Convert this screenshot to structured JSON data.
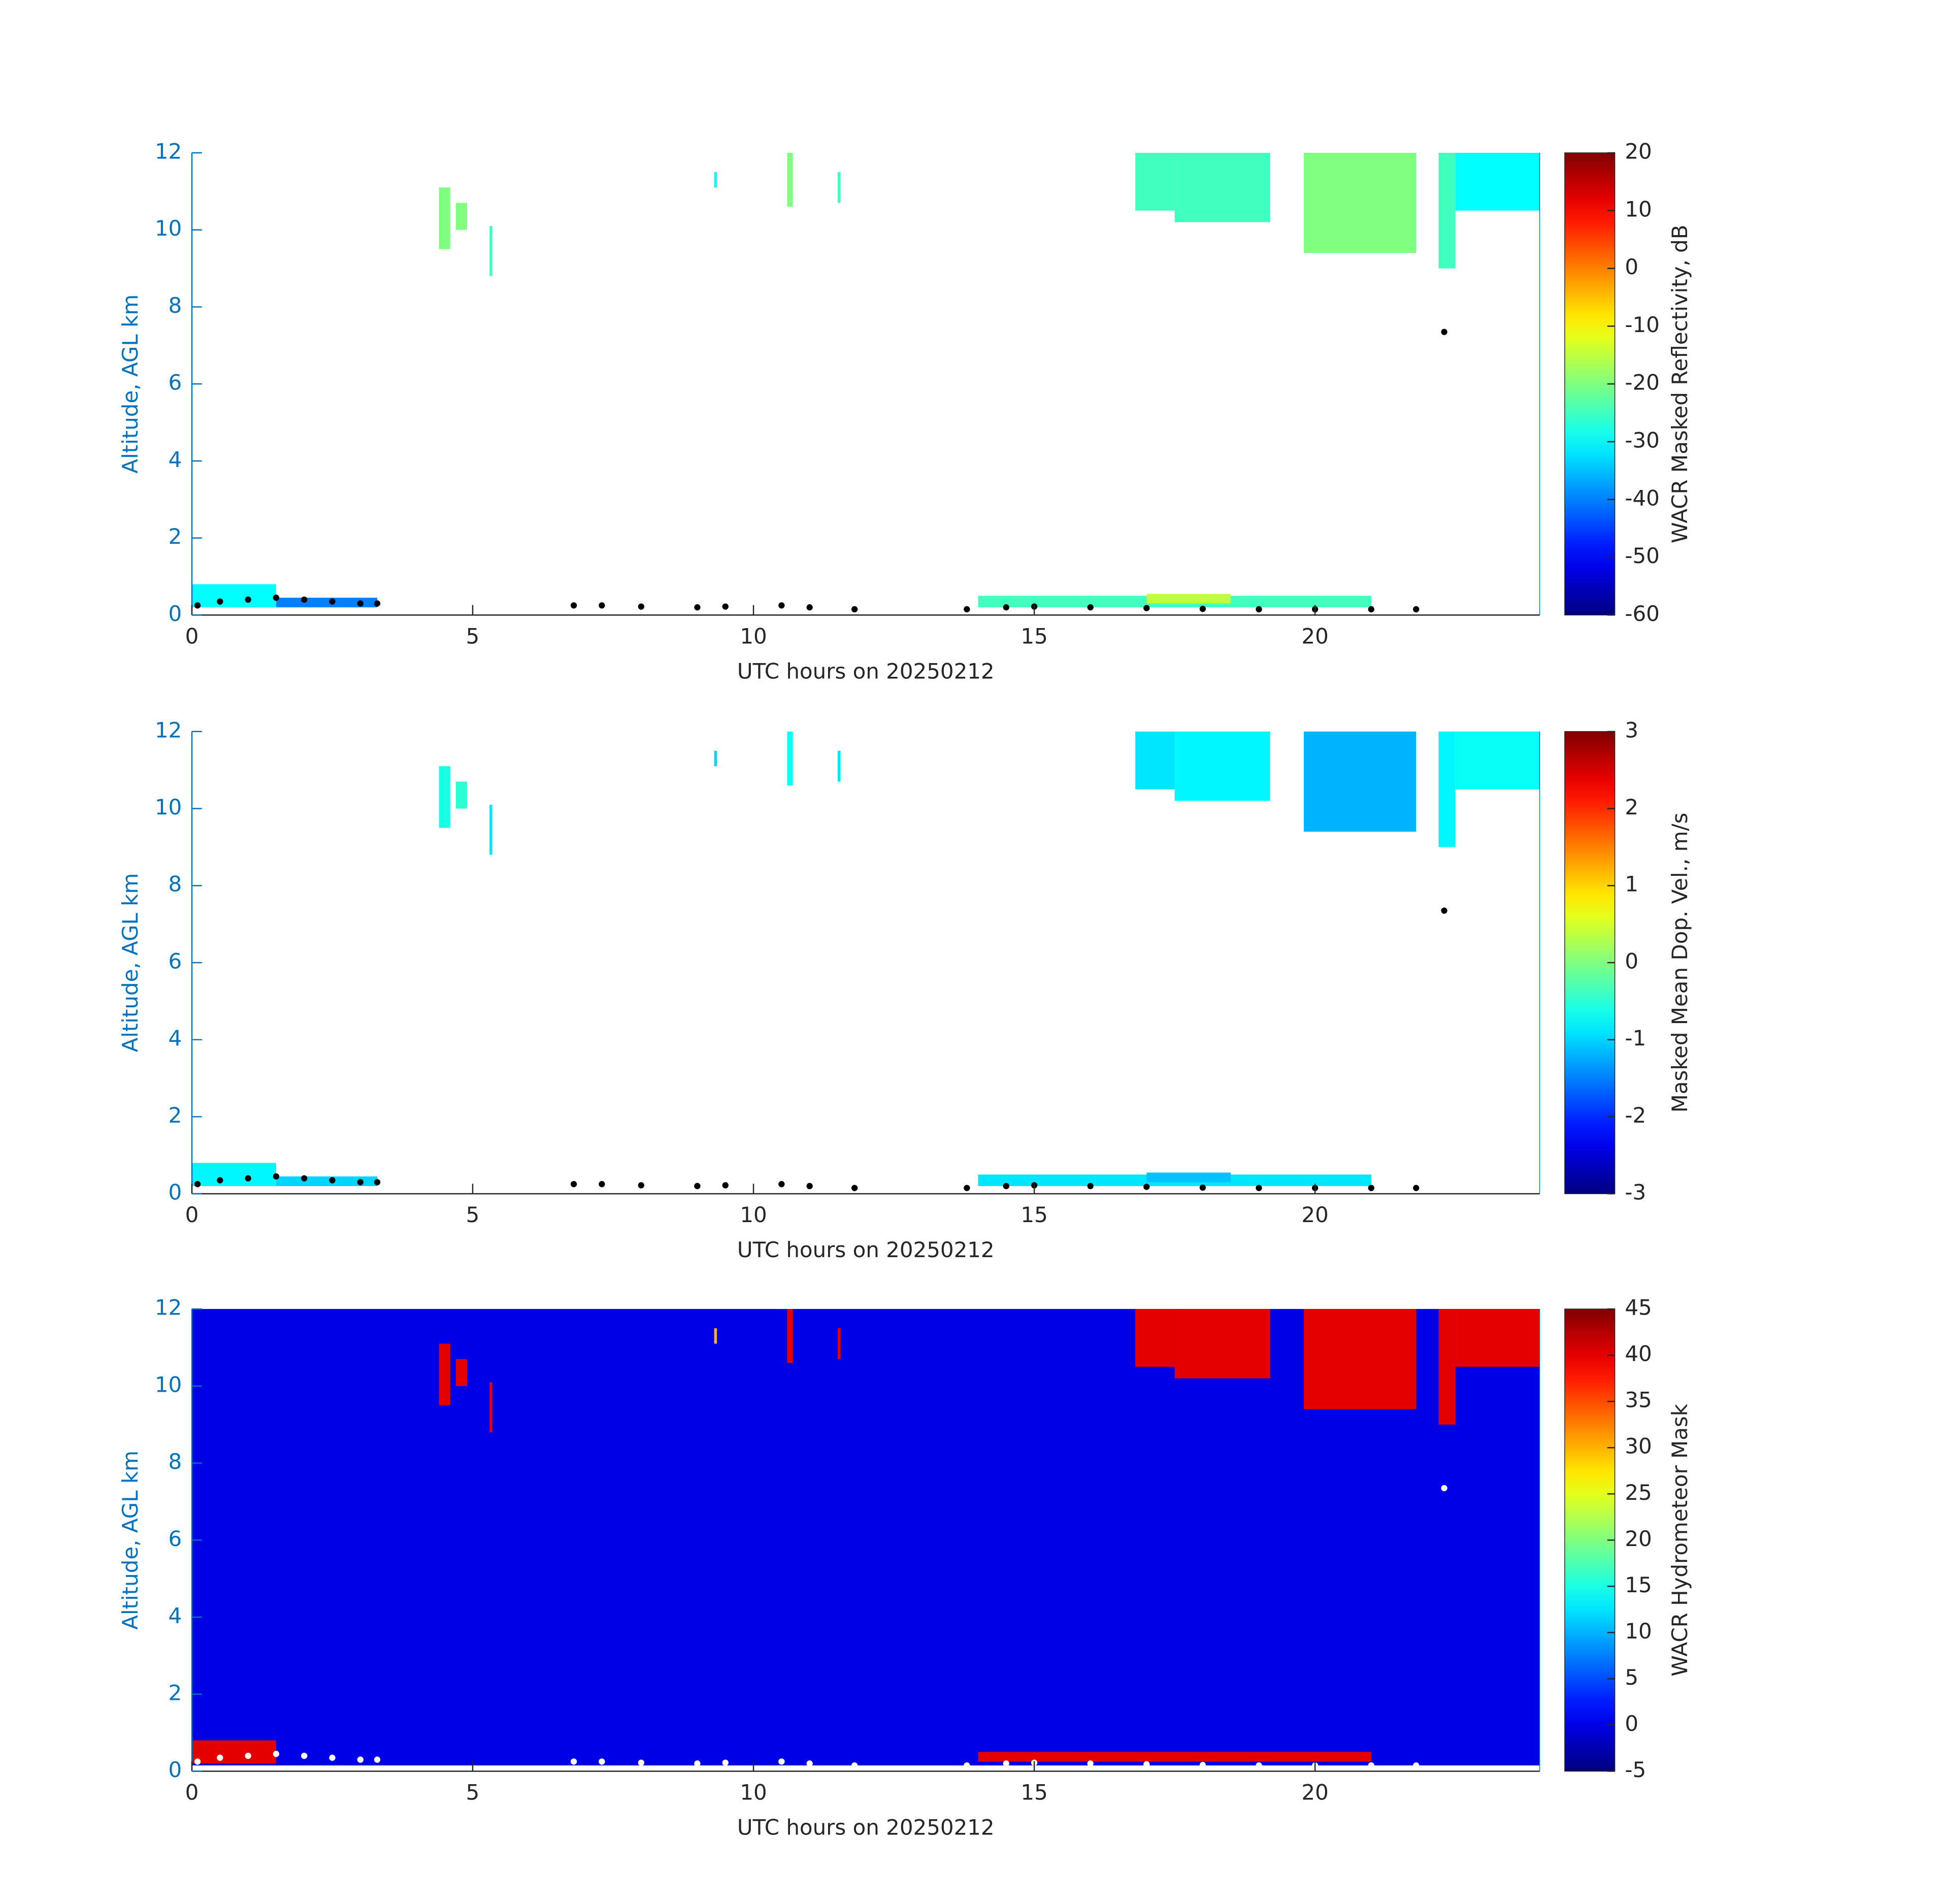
{
  "chart_data": [
    {
      "type": "heatmap",
      "x_label": "UTC hours on 20250212",
      "y_label": "Altitude, AGL km",
      "xlim": [
        0,
        24
      ],
      "xticks": [
        0,
        5,
        10,
        15,
        20
      ],
      "ylim": [
        0,
        12
      ],
      "yticks": [
        0,
        2,
        4,
        6,
        8,
        10,
        12
      ],
      "colorbar": {
        "label": "WACR Masked Reflectivity, dB",
        "lim": [
          -60,
          20
        ],
        "ticks": [
          -60,
          -50,
          -40,
          -30,
          -20,
          -10,
          0,
          10,
          20
        ],
        "colormap": "jet"
      },
      "patches": [
        {
          "x": [
            0,
            1.5
          ],
          "y": [
            0.2,
            0.8
          ],
          "value": -30
        },
        {
          "x": [
            1.5,
            3.3
          ],
          "y": [
            0.2,
            0.45
          ],
          "value": -40
        },
        {
          "x": [
            14,
            21
          ],
          "y": [
            0.2,
            0.5
          ],
          "value": -25
        },
        {
          "x": [
            17,
            18.5
          ],
          "y": [
            0.3,
            0.55
          ],
          "value": -15
        },
        {
          "x": [
            4.4,
            4.6
          ],
          "y": [
            9.5,
            11.1
          ],
          "value": -20
        },
        {
          "x": [
            4.7,
            4.9
          ],
          "y": [
            10,
            10.7
          ],
          "value": -20
        },
        {
          "x": [
            5.3,
            5.35
          ],
          "y": [
            8.8,
            10.1
          ],
          "value": -25
        },
        {
          "x": [
            10.6,
            10.7
          ],
          "y": [
            10.6,
            12
          ],
          "value": -20
        },
        {
          "x": [
            11.5,
            11.55
          ],
          "y": [
            10.7,
            11.5
          ],
          "value": -25
        },
        {
          "x": [
            9.3,
            9.35
          ],
          "y": [
            11.1,
            11.5
          ],
          "value": -30
        },
        {
          "x": [
            16.8,
            17.5
          ],
          "y": [
            10.5,
            12
          ],
          "value": -25
        },
        {
          "x": [
            17.5,
            19.2
          ],
          "y": [
            10.2,
            12
          ],
          "value": -25
        },
        {
          "x": [
            19.8,
            21.8
          ],
          "y": [
            9.4,
            12
          ],
          "value": -20
        },
        {
          "x": [
            22.2,
            22.5
          ],
          "y": [
            9,
            12
          ],
          "value": -25
        },
        {
          "x": [
            22.5,
            24
          ],
          "y": [
            10.5,
            12
          ],
          "value": -30
        }
      ],
      "cloud_base": {
        "color": "#000000",
        "x": [
          0.1,
          0.5,
          1,
          1.5,
          2,
          2.5,
          3,
          3.3,
          6.8,
          7.3,
          8,
          9,
          9.5,
          10.5,
          11,
          11.8,
          13.8,
          14.5,
          15,
          16,
          17,
          18,
          19,
          20,
          21,
          21.8,
          22.3
        ],
        "y": [
          0.25,
          0.35,
          0.4,
          0.45,
          0.4,
          0.35,
          0.3,
          0.3,
          0.25,
          0.25,
          0.22,
          0.2,
          0.22,
          0.25,
          0.2,
          0.15,
          0.15,
          0.2,
          0.22,
          0.2,
          0.18,
          0.16,
          0.15,
          0.15,
          0.15,
          0.15,
          7.35
        ]
      }
    },
    {
      "type": "heatmap",
      "x_label": "UTC hours on 20250212",
      "y_label": "Altitude, AGL km",
      "xlim": [
        0,
        24
      ],
      "xticks": [
        0,
        5,
        10,
        15,
        20
      ],
      "ylim": [
        0,
        12
      ],
      "yticks": [
        0,
        2,
        4,
        6,
        8,
        10,
        12
      ],
      "colorbar": {
        "label": "Masked Mean Dop. Vel., m/s",
        "lim": [
          -3,
          3
        ],
        "ticks": [
          -3,
          -2,
          -1,
          0,
          1,
          2,
          3
        ],
        "colormap": "jet"
      },
      "patches": [
        {
          "x": [
            0,
            1.5
          ],
          "y": [
            0.2,
            0.8
          ],
          "value": -0.8
        },
        {
          "x": [
            1.5,
            3.3
          ],
          "y": [
            0.2,
            0.45
          ],
          "value": -1
        },
        {
          "x": [
            14,
            21
          ],
          "y": [
            0.2,
            0.5
          ],
          "value": -0.9
        },
        {
          "x": [
            17,
            18.5
          ],
          "y": [
            0.3,
            0.55
          ],
          "value": -1.1
        },
        {
          "x": [
            4.4,
            4.6
          ],
          "y": [
            9.5,
            11.1
          ],
          "value": -0.6
        },
        {
          "x": [
            4.7,
            4.9
          ],
          "y": [
            10,
            10.7
          ],
          "value": -0.5
        },
        {
          "x": [
            5.3,
            5.35
          ],
          "y": [
            8.8,
            10.1
          ],
          "value": -0.9
        },
        {
          "x": [
            10.6,
            10.7
          ],
          "y": [
            10.6,
            12
          ],
          "value": -0.7
        },
        {
          "x": [
            11.5,
            11.55
          ],
          "y": [
            10.7,
            11.5
          ],
          "value": -0.9
        },
        {
          "x": [
            9.3,
            9.35
          ],
          "y": [
            11.1,
            11.5
          ],
          "value": -1
        },
        {
          "x": [
            16.8,
            17.5
          ],
          "y": [
            10.5,
            12
          ],
          "value": -0.9
        },
        {
          "x": [
            17.5,
            19.2
          ],
          "y": [
            10.2,
            12
          ],
          "value": -0.8
        },
        {
          "x": [
            19.8,
            21.8
          ],
          "y": [
            9.4,
            12
          ],
          "value": -1.2
        },
        {
          "x": [
            22.2,
            22.5
          ],
          "y": [
            9,
            12
          ],
          "value": -0.8
        },
        {
          "x": [
            22.5,
            24
          ],
          "y": [
            10.5,
            12
          ],
          "value": -0.7
        }
      ],
      "cloud_base": {
        "color": "#000000",
        "x": [
          0.1,
          0.5,
          1,
          1.5,
          2,
          2.5,
          3,
          3.3,
          6.8,
          7.3,
          8,
          9,
          9.5,
          10.5,
          11,
          11.8,
          13.8,
          14.5,
          15,
          16,
          17,
          18,
          19,
          20,
          21,
          21.8,
          22.3
        ],
        "y": [
          0.25,
          0.35,
          0.4,
          0.45,
          0.4,
          0.35,
          0.3,
          0.3,
          0.25,
          0.25,
          0.22,
          0.2,
          0.22,
          0.25,
          0.2,
          0.15,
          0.15,
          0.2,
          0.22,
          0.2,
          0.18,
          0.16,
          0.15,
          0.15,
          0.15,
          0.15,
          7.35
        ]
      }
    },
    {
      "type": "heatmap",
      "x_label": "UTC hours on 20250212",
      "y_label": "Altitude, AGL km",
      "xlim": [
        0,
        24
      ],
      "xticks": [
        0,
        5,
        10,
        15,
        20
      ],
      "ylim": [
        0,
        12
      ],
      "yticks": [
        0,
        2,
        4,
        6,
        8,
        10,
        12
      ],
      "colorbar": {
        "label": "WACR Hydrometeor Mask",
        "lim": [
          -5,
          45
        ],
        "ticks": [
          -5,
          0,
          5,
          10,
          15,
          20,
          25,
          30,
          35,
          40,
          45
        ],
        "colormap": "jet"
      },
      "patches": [
        {
          "x": [
            0,
            24
          ],
          "y": [
            0.15,
            12
          ],
          "value": 0
        },
        {
          "x": [
            0,
            1.5
          ],
          "y": [
            0.2,
            0.8
          ],
          "value": 40
        },
        {
          "x": [
            14,
            21
          ],
          "y": [
            0.25,
            0.5
          ],
          "value": 40
        },
        {
          "x": [
            4.4,
            4.6
          ],
          "y": [
            9.5,
            11.1
          ],
          "value": 40
        },
        {
          "x": [
            4.7,
            4.9
          ],
          "y": [
            10,
            10.7
          ],
          "value": 40
        },
        {
          "x": [
            5.3,
            5.35
          ],
          "y": [
            8.8,
            10.1
          ],
          "value": 40
        },
        {
          "x": [
            10.6,
            10.7
          ],
          "y": [
            10.6,
            12
          ],
          "value": 40
        },
        {
          "x": [
            11.5,
            11.55
          ],
          "y": [
            10.7,
            11.5
          ],
          "value": 40
        },
        {
          "x": [
            9.3,
            9.35
          ],
          "y": [
            11.1,
            11.5
          ],
          "value": 30
        },
        {
          "x": [
            16.8,
            17.5
          ],
          "y": [
            10.5,
            12
          ],
          "value": 40
        },
        {
          "x": [
            17.5,
            19.2
          ],
          "y": [
            10.2,
            12
          ],
          "value": 40
        },
        {
          "x": [
            19.8,
            21.8
          ],
          "y": [
            9.4,
            12
          ],
          "value": 40
        },
        {
          "x": [
            22.2,
            22.5
          ],
          "y": [
            9,
            12
          ],
          "value": 40
        },
        {
          "x": [
            22.5,
            24
          ],
          "y": [
            10.5,
            12
          ],
          "value": 40
        }
      ],
      "cloud_base": {
        "color": "#ffffff",
        "x": [
          0.1,
          0.5,
          1,
          1.5,
          2,
          2.5,
          3,
          3.3,
          6.8,
          7.3,
          8,
          9,
          9.5,
          10.5,
          11,
          11.8,
          13.8,
          14.5,
          15,
          16,
          17,
          18,
          19,
          20,
          21,
          21.8,
          22.3
        ],
        "y": [
          0.25,
          0.35,
          0.4,
          0.45,
          0.4,
          0.35,
          0.3,
          0.3,
          0.25,
          0.25,
          0.22,
          0.2,
          0.22,
          0.25,
          0.2,
          0.15,
          0.15,
          0.2,
          0.22,
          0.2,
          0.18,
          0.16,
          0.15,
          0.15,
          0.15,
          0.15,
          7.35
        ]
      }
    }
  ]
}
